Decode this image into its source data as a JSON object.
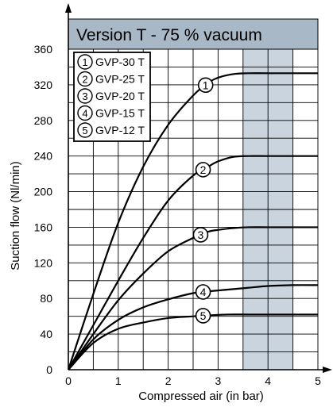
{
  "chart_data": {
    "type": "line",
    "title": "Version T - 75 % vacuum",
    "xlabel": "Compressed air (in bar)",
    "ylabel": "Suction flow (Nl/min)",
    "xlim": [
      0,
      5
    ],
    "ylim": [
      0,
      360
    ],
    "xticks": [
      0,
      1,
      2,
      3,
      4,
      5
    ],
    "yticks": [
      0,
      40,
      80,
      120,
      160,
      200,
      240,
      280,
      320,
      360
    ],
    "grid": true,
    "legend_position": "top-left",
    "highlight_band": {
      "x_from": 3.5,
      "x_to": 4.5,
      "color": "#c9d4df"
    },
    "title_band_color": "#a9b8c6",
    "series": [
      {
        "name": "GVP-30 T",
        "marker": "1",
        "x": [
          0,
          0.5,
          1,
          1.5,
          2,
          2.5,
          2.8,
          3.0,
          3.3,
          3.6,
          4.0,
          4.5,
          5.0
        ],
        "y": [
          0,
          85,
          165,
          228,
          275,
          308,
          322,
          328,
          332,
          333,
          333,
          333,
          333
        ]
      },
      {
        "name": "GVP-25 T",
        "marker": "2",
        "x": [
          0,
          0.5,
          1,
          1.5,
          2,
          2.5,
          2.8,
          3.0,
          3.3,
          3.6,
          4.0,
          4.5,
          5.0
        ],
        "y": [
          0,
          50,
          100,
          148,
          190,
          218,
          228,
          234,
          239,
          240,
          240,
          240,
          240
        ]
      },
      {
        "name": "GVP-20 T",
        "marker": "3",
        "x": [
          0,
          0.5,
          1,
          1.5,
          2,
          2.5,
          2.8,
          3.0,
          3.3,
          3.6,
          4.0,
          4.5,
          5.0
        ],
        "y": [
          0,
          40,
          78,
          108,
          133,
          148,
          155,
          157,
          159,
          160,
          160,
          160,
          160
        ]
      },
      {
        "name": "GVP-15 T",
        "marker": "4",
        "x": [
          0,
          0.5,
          1,
          1.5,
          2,
          2.5,
          2.8,
          3.2,
          3.6,
          4.0,
          4.5,
          5.0
        ],
        "y": [
          0,
          34,
          56,
          70,
          79,
          86,
          88,
          90,
          92,
          94,
          95,
          95
        ]
      },
      {
        "name": "GVP-12 T",
        "marker": "5",
        "x": [
          0,
          0.5,
          1,
          1.5,
          2,
          2.5,
          2.8,
          3.2,
          3.6,
          4.0,
          4.5,
          5.0
        ],
        "y": [
          0,
          30,
          46,
          53,
          58,
          60,
          61,
          62,
          62,
          62,
          62,
          62
        ]
      }
    ]
  }
}
